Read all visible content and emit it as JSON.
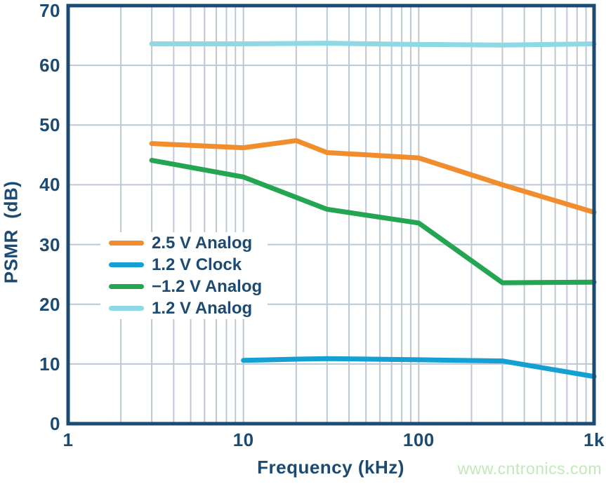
{
  "style": {
    "navy": "#1B4A73",
    "grid_color": "#BCC8D4",
    "background": "#FFFFFF",
    "watermark_color": "#C3E9BA"
  },
  "watermark": {
    "text": "www.cntronics.com"
  },
  "chart_data": {
    "type": "line",
    "title": "",
    "xlabel": "Frequency (kHz)",
    "ylabel": "PSMR  (dB)",
    "x_scale": "log",
    "xlim": [
      1,
      1000
    ],
    "ylim": [
      0,
      70
    ],
    "grid": "on",
    "legend_position": "inside-center-left",
    "x_ticks": [
      {
        "value": 1,
        "label": "1"
      },
      {
        "value": 10,
        "label": "10"
      },
      {
        "value": 100,
        "label": "100"
      },
      {
        "value": 1000,
        "label": "1k"
      }
    ],
    "y_ticks": [
      0,
      10,
      20,
      30,
      40,
      50,
      60,
      70
    ],
    "series": [
      {
        "name": "2.5 V Analog",
        "color": "#F28D2D",
        "x": [
          3,
          10,
          20,
          30,
          100,
          300,
          1000
        ],
        "y": [
          46.9,
          46.2,
          47.4,
          45.4,
          44.5,
          40.0,
          35.4
        ]
      },
      {
        "name": "1.2 V Clock",
        "color": "#14A0D2",
        "x": [
          10,
          20,
          30,
          100,
          300,
          1000
        ],
        "y": [
          10.6,
          10.8,
          10.9,
          10.7,
          10.5,
          7.9
        ]
      },
      {
        "name": "−1.2 V Analog",
        "color": "#23A551",
        "x": [
          3,
          10,
          30,
          100,
          300,
          1000
        ],
        "y": [
          44.1,
          41.3,
          35.9,
          33.6,
          23.6,
          23.7
        ]
      },
      {
        "name": "1.2 V Analog",
        "color": "#8ED9E5",
        "x": [
          3,
          10,
          30,
          100,
          300,
          1000
        ],
        "y": [
          63.6,
          63.6,
          63.7,
          63.5,
          63.4,
          63.6
        ]
      }
    ]
  }
}
